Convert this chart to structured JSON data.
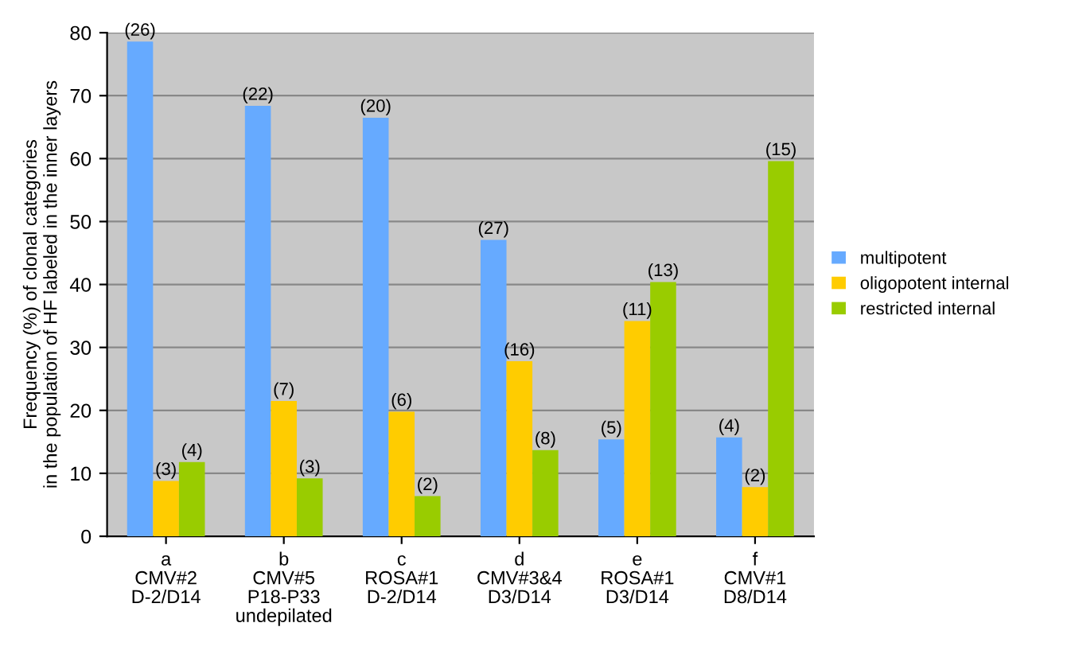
{
  "chart_data": {
    "type": "bar",
    "ylabel": "Frequency (%) of clonal categories\nin the population of HF labeled in the inner layers",
    "categories": [
      "a\nCMV#2\nD-2/D14",
      "b\nCMV#5\nP18-P33\nundepilated",
      "c\nROSA#1\nD-2/D14",
      "d\nCMV#3&4\nD3/D14",
      "e\nROSA#1\nD3/D14",
      "f\nCMV#1\nD8/D14"
    ],
    "series": [
      {
        "name": "multipotent",
        "color": "#66aaff",
        "values": [
          78.6,
          68.4,
          66.5,
          47.1,
          15.4,
          15.7
        ]
      },
      {
        "name": "oligopotent internal",
        "color": "#ffcc00",
        "values": [
          8.8,
          21.5,
          19.8,
          27.8,
          34.2,
          7.8
        ]
      },
      {
        "name": "restricted internal",
        "color": "#99cc00",
        "values": [
          11.8,
          9.2,
          6.4,
          13.7,
          40.4,
          59.6
        ]
      }
    ],
    "annotations": [
      "(26)",
      "(3)",
      "(4)",
      "(22)",
      "(7)",
      "(3)",
      "(20)",
      "(6)",
      "(2)",
      "(27)",
      "(16)",
      "(8)",
      "(5)",
      "(11)",
      "(13)",
      "(4)",
      "(2)",
      "(15)"
    ],
    "ylim": [
      0,
      80
    ],
    "yticks": [
      0,
      10,
      20,
      30,
      40,
      50,
      60,
      70,
      80
    ],
    "grid": "y",
    "legend": "right"
  }
}
